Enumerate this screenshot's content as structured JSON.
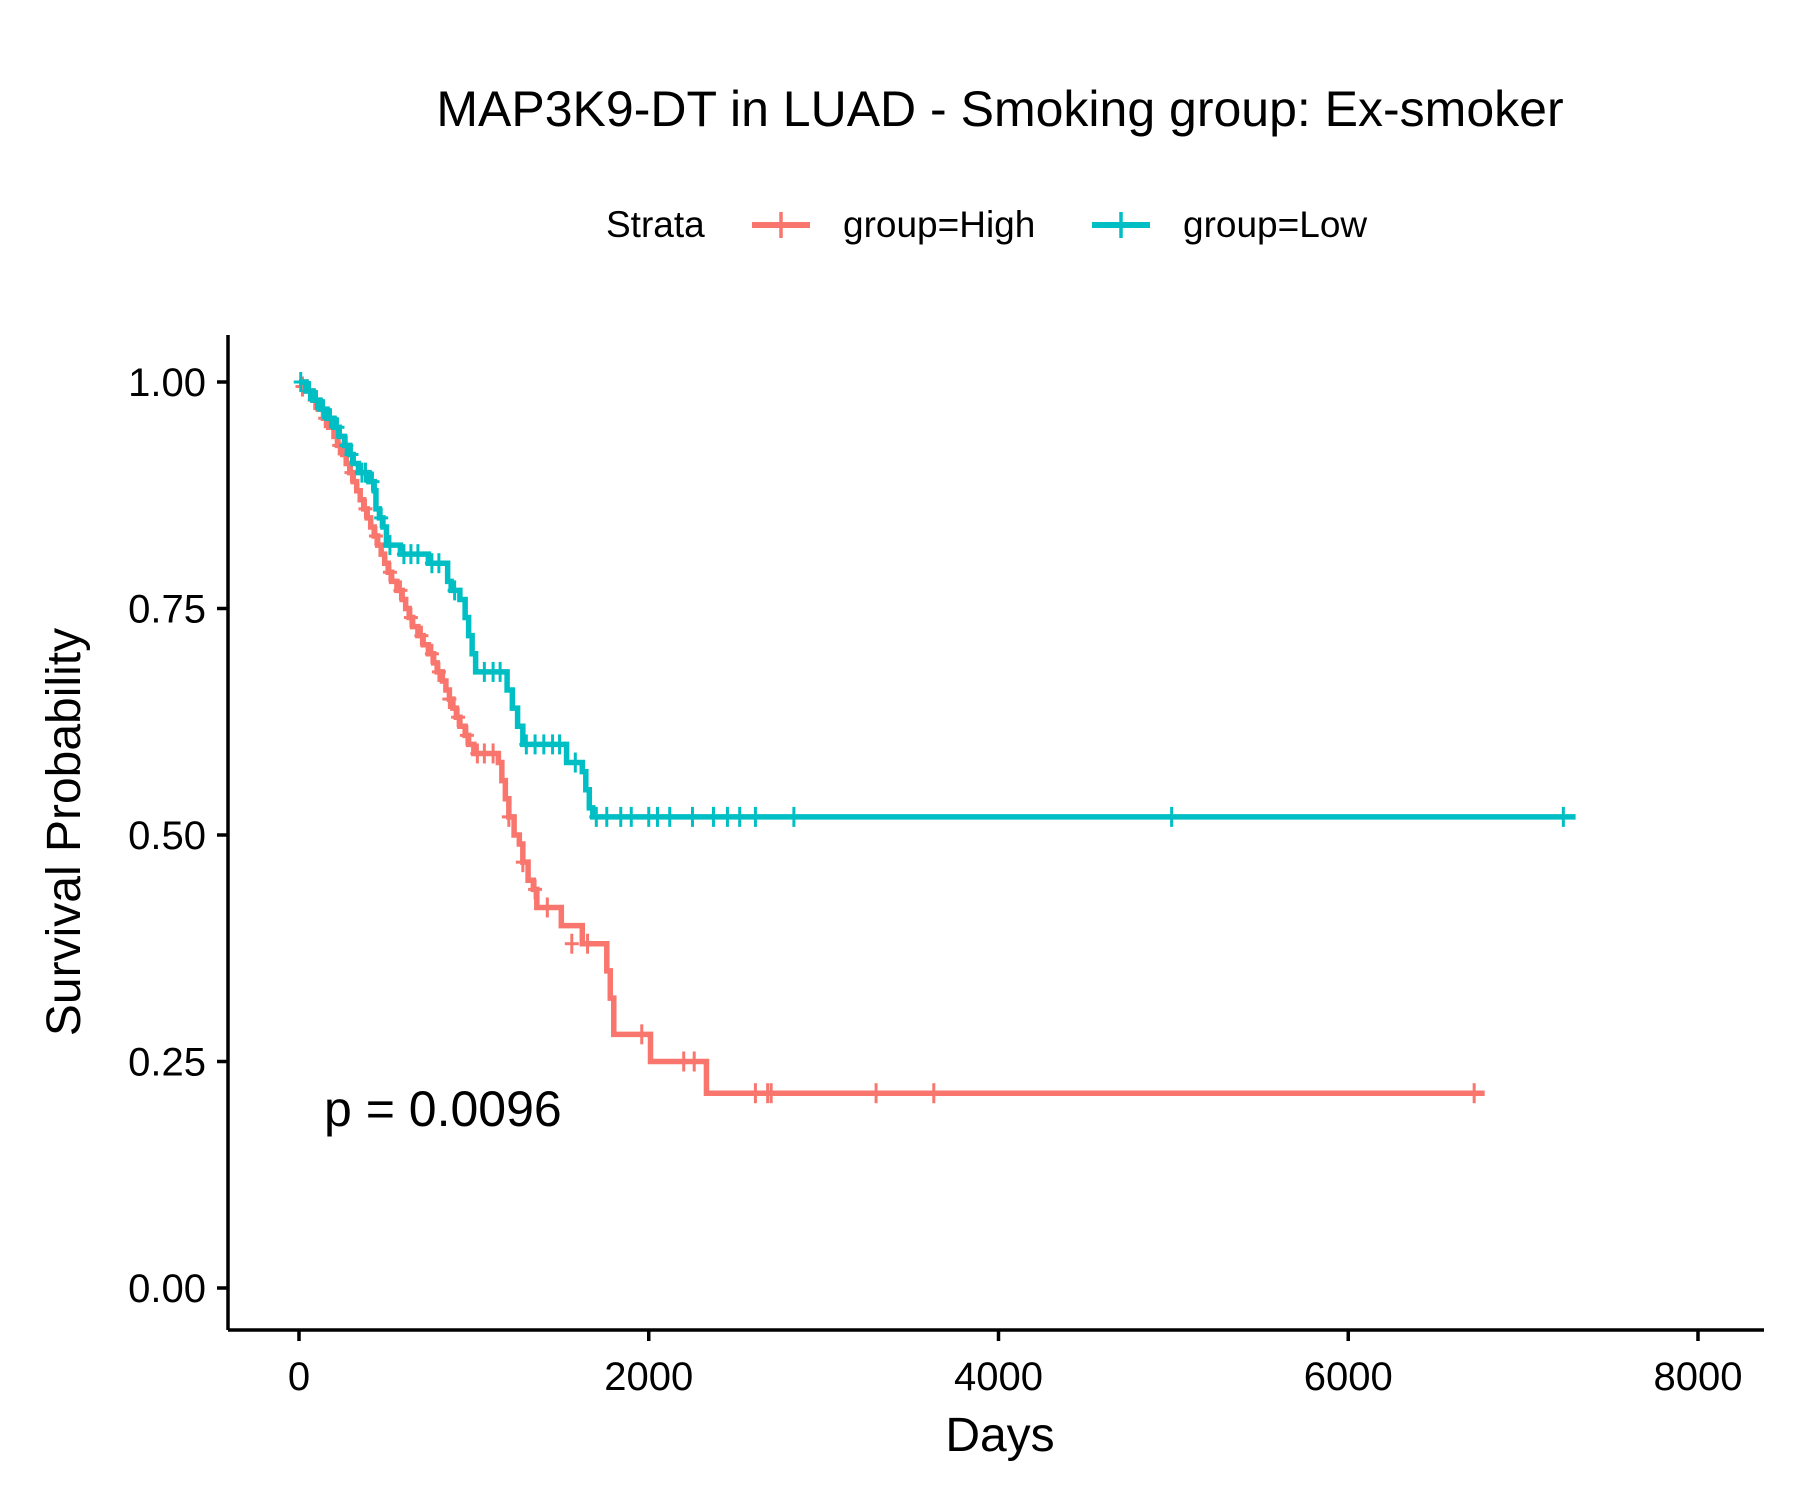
{
  "chart_data": {
    "type": "line",
    "title": "MAP3K9-DT in LUAD - Smoking group: Ex-smoker",
    "xlabel": "Days",
    "ylabel": "Survival Probability",
    "xlim": [
      -400,
      8400
    ],
    "ylim": [
      -0.05,
      1.05
    ],
    "x_ticks": [
      0,
      2000,
      4000,
      6000,
      8000
    ],
    "x_tick_labels": [
      "0",
      "2000",
      "4000",
      "6000",
      "8000"
    ],
    "y_ticks": [
      0,
      0.25,
      0.5,
      0.75,
      1.0
    ],
    "y_tick_labels": [
      "0.00",
      "0.25",
      "0.50",
      "0.75",
      "1.00"
    ],
    "grid": false,
    "legend": {
      "title": "Strata",
      "position": "top"
    },
    "annotation": "p = 0.0096",
    "series": [
      {
        "name": "group=High",
        "color": "#F8766D",
        "steps": [
          [
            0,
            1.0
          ],
          [
            40,
            0.99
          ],
          [
            80,
            0.98
          ],
          [
            110,
            0.97
          ],
          [
            140,
            0.96
          ],
          [
            170,
            0.95
          ],
          [
            200,
            0.94
          ],
          [
            220,
            0.93
          ],
          [
            250,
            0.92
          ],
          [
            270,
            0.91
          ],
          [
            290,
            0.9
          ],
          [
            310,
            0.89
          ],
          [
            330,
            0.88
          ],
          [
            350,
            0.87
          ],
          [
            370,
            0.86
          ],
          [
            390,
            0.85
          ],
          [
            410,
            0.84
          ],
          [
            430,
            0.83
          ],
          [
            450,
            0.82
          ],
          [
            470,
            0.81
          ],
          [
            490,
            0.8
          ],
          [
            510,
            0.79
          ],
          [
            530,
            0.78
          ],
          [
            560,
            0.77
          ],
          [
            590,
            0.76
          ],
          [
            610,
            0.75
          ],
          [
            630,
            0.74
          ],
          [
            650,
            0.73
          ],
          [
            680,
            0.72
          ],
          [
            710,
            0.71
          ],
          [
            740,
            0.7
          ],
          [
            770,
            0.69
          ],
          [
            790,
            0.68
          ],
          [
            820,
            0.67
          ],
          [
            840,
            0.66
          ],
          [
            860,
            0.65
          ],
          [
            880,
            0.64
          ],
          [
            900,
            0.63
          ],
          [
            920,
            0.62
          ],
          [
            950,
            0.61
          ],
          [
            970,
            0.6
          ],
          [
            1000,
            0.59
          ],
          [
            1140,
            0.58
          ],
          [
            1160,
            0.56
          ],
          [
            1180,
            0.54
          ],
          [
            1200,
            0.52
          ],
          [
            1230,
            0.5
          ],
          [
            1260,
            0.49
          ],
          [
            1280,
            0.47
          ],
          [
            1310,
            0.45
          ],
          [
            1340,
            0.44
          ],
          [
            1360,
            0.42
          ],
          [
            1400,
            0.42
          ],
          [
            1500,
            0.4
          ],
          [
            1620,
            0.38
          ],
          [
            1760,
            0.35
          ],
          [
            1780,
            0.32
          ],
          [
            1800,
            0.28
          ],
          [
            1990,
            0.28
          ],
          [
            2010,
            0.25
          ],
          [
            2310,
            0.25
          ],
          [
            2330,
            0.215
          ],
          [
            6780,
            0.215
          ]
        ],
        "censors": [
          [
            20,
            0.995
          ],
          [
            90,
            0.98
          ],
          [
            150,
            0.96
          ],
          [
            230,
            0.93
          ],
          [
            300,
            0.9
          ],
          [
            380,
            0.86
          ],
          [
            440,
            0.83
          ],
          [
            520,
            0.79
          ],
          [
            580,
            0.77
          ],
          [
            640,
            0.74
          ],
          [
            700,
            0.72
          ],
          [
            760,
            0.7
          ],
          [
            800,
            0.68
          ],
          [
            860,
            0.65
          ],
          [
            910,
            0.63
          ],
          [
            960,
            0.61
          ],
          [
            1020,
            0.59
          ],
          [
            1060,
            0.59
          ],
          [
            1110,
            0.59
          ],
          [
            1200,
            0.52
          ],
          [
            1280,
            0.47
          ],
          [
            1350,
            0.44
          ],
          [
            1420,
            0.42
          ],
          [
            1560,
            0.38
          ],
          [
            1650,
            0.38
          ],
          [
            1960,
            0.28
          ],
          [
            2200,
            0.25
          ],
          [
            2260,
            0.25
          ],
          [
            2610,
            0.215
          ],
          [
            2680,
            0.215
          ],
          [
            2700,
            0.215
          ],
          [
            3300,
            0.215
          ],
          [
            3630,
            0.215
          ],
          [
            6720,
            0.215
          ]
        ]
      },
      {
        "name": "group=Low",
        "color": "#00BFC4",
        "steps": [
          [
            0,
            1.0
          ],
          [
            40,
            0.99
          ],
          [
            80,
            0.98
          ],
          [
            120,
            0.97
          ],
          [
            160,
            0.96
          ],
          [
            200,
            0.95
          ],
          [
            230,
            0.94
          ],
          [
            260,
            0.93
          ],
          [
            290,
            0.92
          ],
          [
            310,
            0.91
          ],
          [
            340,
            0.9
          ],
          [
            400,
            0.89
          ],
          [
            430,
            0.88
          ],
          [
            440,
            0.86
          ],
          [
            460,
            0.85
          ],
          [
            480,
            0.84
          ],
          [
            500,
            0.82
          ],
          [
            560,
            0.82
          ],
          [
            580,
            0.81
          ],
          [
            720,
            0.81
          ],
          [
            740,
            0.8
          ],
          [
            830,
            0.8
          ],
          [
            850,
            0.78
          ],
          [
            870,
            0.77
          ],
          [
            920,
            0.76
          ],
          [
            950,
            0.74
          ],
          [
            970,
            0.72
          ],
          [
            990,
            0.7
          ],
          [
            1010,
            0.68
          ],
          [
            1170,
            0.68
          ],
          [
            1190,
            0.66
          ],
          [
            1220,
            0.64
          ],
          [
            1250,
            0.62
          ],
          [
            1280,
            0.6
          ],
          [
            1510,
            0.6
          ],
          [
            1530,
            0.58
          ],
          [
            1620,
            0.57
          ],
          [
            1640,
            0.55
          ],
          [
            1660,
            0.53
          ],
          [
            1680,
            0.52
          ],
          [
            7300,
            0.52
          ]
        ],
        "censors": [
          [
            10,
            1.0
          ],
          [
            60,
            0.99
          ],
          [
            100,
            0.98
          ],
          [
            140,
            0.97
          ],
          [
            180,
            0.96
          ],
          [
            220,
            0.95
          ],
          [
            270,
            0.93
          ],
          [
            300,
            0.92
          ],
          [
            360,
            0.9
          ],
          [
            380,
            0.9
          ],
          [
            420,
            0.89
          ],
          [
            470,
            0.85
          ],
          [
            520,
            0.82
          ],
          [
            600,
            0.81
          ],
          [
            640,
            0.81
          ],
          [
            680,
            0.81
          ],
          [
            760,
            0.8
          ],
          [
            800,
            0.8
          ],
          [
            890,
            0.77
          ],
          [
            1060,
            0.68
          ],
          [
            1110,
            0.68
          ],
          [
            1150,
            0.68
          ],
          [
            1300,
            0.6
          ],
          [
            1350,
            0.6
          ],
          [
            1400,
            0.6
          ],
          [
            1450,
            0.6
          ],
          [
            1490,
            0.6
          ],
          [
            1580,
            0.58
          ],
          [
            1700,
            0.52
          ],
          [
            1760,
            0.52
          ],
          [
            1840,
            0.52
          ],
          [
            1900,
            0.52
          ],
          [
            2000,
            0.52
          ],
          [
            2050,
            0.52
          ],
          [
            2120,
            0.52
          ],
          [
            2250,
            0.52
          ],
          [
            2370,
            0.52
          ],
          [
            2450,
            0.52
          ],
          [
            2520,
            0.52
          ],
          [
            2610,
            0.52
          ],
          [
            2830,
            0.52
          ],
          [
            4990,
            0.52
          ],
          [
            7230,
            0.52
          ]
        ]
      }
    ]
  }
}
